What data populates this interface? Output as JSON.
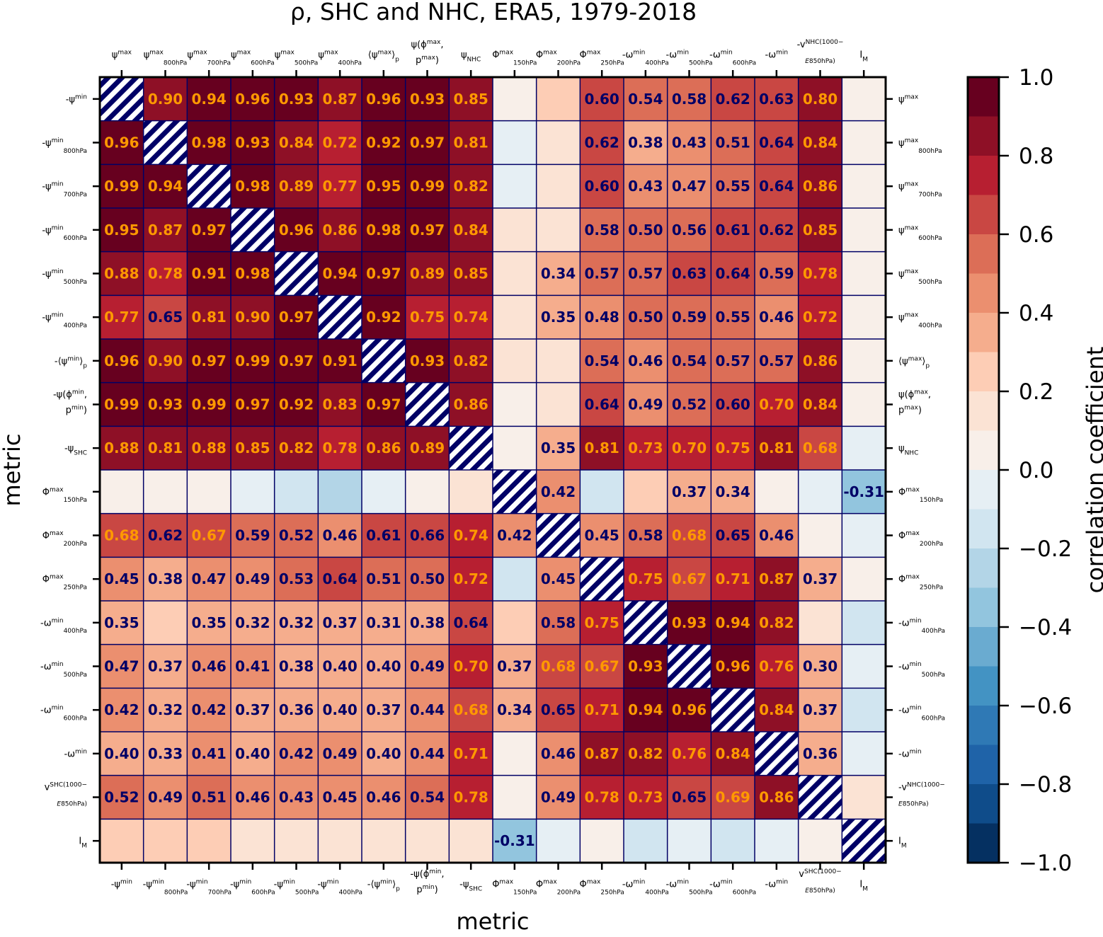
{
  "chart_data": {
    "type": "heatmap",
    "title": "ρ, SHC and NHC, ERA5, 1979-2018",
    "xlabel": "metric",
    "ylabel": "metric",
    "colorbar": {
      "label": "correlation coefficient",
      "range": [
        -1.0,
        1.0
      ],
      "ticks": [
        "1.0",
        "0.8",
        "0.6",
        "0.4",
        "0.2",
        "0.0",
        "−0.2",
        "−0.4",
        "−0.6",
        "−0.8",
        "−1.0"
      ],
      "levels": 20,
      "colormap": "RdBu_r"
    },
    "label_colors": {
      "strong": "#ff9900",
      "weak": "#000066"
    },
    "hatch_color": "#000066",
    "row_labels": [
      "-ψmin",
      "-ψmin800hPa",
      "-ψmin700hPa",
      "-ψmin600hPa",
      "-ψmin500hPa",
      "-ψmin400hPa",
      "-⟨ψmin⟩p",
      "-ψ(ϕmin, pmin)",
      "-ψSHC",
      "Φmax150hPa",
      "Φmax200hPa",
      "Φmax250hPa",
      "-ωmin400hPa",
      "-ωmin500hPa",
      "-ωmin600hPa",
      "-ωmin",
      "vSHC(1000−850hPa)E",
      "IM"
    ],
    "col_labels": [
      "ψmax",
      "ψmax800hPa",
      "ψmax700hPa",
      "ψmax600hPa",
      "ψmax500hPa",
      "ψmax400hPa",
      "⟨ψmax⟩p",
      "ψ(ϕmax, pmax)",
      "ψNHC",
      "Φmax150hPa",
      "Φmax200hPa",
      "Φmax250hPa",
      "-ωmin400hPa",
      "-ωmin500hPa",
      "-ωmin600hPa",
      "-ωmin",
      "-vNHC(1000−850hPa)E",
      "IM"
    ],
    "bottom_labels": [
      "-ψmin",
      "-ψmin800hPa",
      "-ψmin700hPa",
      "-ψmin600hPa",
      "-ψmin500hPa",
      "-ψmin400hPa",
      "-⟨ψmin⟩p",
      "-ψ(ϕmin, pmin)",
      "-ψSHC",
      "Φmax150hPa",
      "Φmax200hPa",
      "Φmax250hPa",
      "-ωmin400hPa",
      "-ωmin500hPa",
      "-ωmin600hPa",
      "-ωmin",
      "vSHC(1000−850hPa)E",
      "IM"
    ],
    "right_labels": [
      "ψmax",
      "ψmax800hPa",
      "ψmax700hPa",
      "ψmax600hPa",
      "ψmax500hPa",
      "ψmax400hPa",
      "⟨ψmax⟩p",
      "ψ(ϕmax, pmax)",
      "ψNHC",
      "Φmax150hPa",
      "Φmax200hPa",
      "Φmax250hPa",
      "-ωmin400hPa",
      "-ωmin500hPa",
      "-ωmin600hPa",
      "-ωmin",
      "-vNHC(1000−850hPa)E",
      "IM"
    ],
    "values": [
      [
        null,
        0.9,
        0.94,
        0.96,
        0.93,
        0.87,
        0.96,
        0.93,
        0.85,
        0.03,
        0.25,
        0.6,
        0.54,
        0.58,
        0.62,
        0.63,
        0.8,
        0.03
      ],
      [
        0.96,
        null,
        0.98,
        0.93,
        0.84,
        0.72,
        0.92,
        0.97,
        0.81,
        -0.03,
        0.2,
        0.62,
        0.38,
        0.43,
        0.51,
        0.64,
        0.84,
        0.03
      ],
      [
        0.99,
        0.94,
        null,
        0.98,
        0.89,
        0.77,
        0.95,
        0.99,
        0.82,
        -0.03,
        0.2,
        0.6,
        0.43,
        0.47,
        0.55,
        0.64,
        0.86,
        0.03
      ],
      [
        0.95,
        0.87,
        0.97,
        null,
        0.96,
        0.86,
        0.98,
        0.97,
        0.84,
        0.12,
        0.2,
        0.58,
        0.5,
        0.56,
        0.61,
        0.62,
        0.85,
        0.03
      ],
      [
        0.88,
        0.78,
        0.91,
        0.98,
        null,
        0.94,
        0.97,
        0.89,
        0.85,
        0.12,
        0.34,
        0.57,
        0.57,
        0.63,
        0.64,
        0.59,
        0.78,
        0.03
      ],
      [
        0.77,
        0.65,
        0.81,
        0.9,
        0.97,
        null,
        0.92,
        0.75,
        0.74,
        0.12,
        0.35,
        0.48,
        0.5,
        0.59,
        0.55,
        0.46,
        0.72,
        0.03
      ],
      [
        0.96,
        0.9,
        0.97,
        0.99,
        0.97,
        0.91,
        null,
        0.93,
        0.82,
        0.12,
        0.2,
        0.54,
        0.46,
        0.54,
        0.57,
        0.57,
        0.86,
        0.03
      ],
      [
        0.99,
        0.93,
        0.99,
        0.97,
        0.92,
        0.83,
        0.97,
        null,
        0.86,
        0.03,
        0.2,
        0.64,
        0.49,
        0.52,
        0.6,
        0.7,
        0.84,
        0.03
      ],
      [
        0.88,
        0.81,
        0.88,
        0.85,
        0.82,
        0.78,
        0.86,
        0.89,
        null,
        0.03,
        0.35,
        0.81,
        0.73,
        0.7,
        0.75,
        0.81,
        0.68,
        -0.03
      ],
      [
        0.03,
        0.03,
        0.03,
        -0.03,
        -0.12,
        -0.25,
        -0.03,
        0.03,
        0.12,
        null,
        0.42,
        -0.12,
        0.25,
        0.37,
        0.34,
        0.03,
        -0.03,
        -0.31
      ],
      [
        0.68,
        0.62,
        0.67,
        0.59,
        0.52,
        0.46,
        0.61,
        0.66,
        0.74,
        0.42,
        null,
        0.45,
        0.58,
        0.68,
        0.65,
        0.46,
        0.03,
        -0.03
      ],
      [
        0.45,
        0.38,
        0.47,
        0.49,
        0.53,
        0.64,
        0.51,
        0.5,
        0.72,
        -0.12,
        0.45,
        null,
        0.75,
        0.67,
        0.71,
        0.87,
        0.37,
        0.03
      ],
      [
        0.35,
        0.25,
        0.35,
        0.32,
        0.32,
        0.37,
        0.31,
        0.38,
        0.64,
        0.25,
        0.58,
        0.75,
        null,
        0.93,
        0.94,
        0.82,
        0.12,
        -0.12
      ],
      [
        0.47,
        0.37,
        0.46,
        0.41,
        0.38,
        0.4,
        0.4,
        0.49,
        0.7,
        0.37,
        0.68,
        0.67,
        0.93,
        null,
        0.96,
        0.76,
        0.3,
        -0.03
      ],
      [
        0.42,
        0.32,
        0.42,
        0.37,
        0.36,
        0.4,
        0.37,
        0.44,
        0.68,
        0.34,
        0.65,
        0.71,
        0.94,
        0.96,
        null,
        0.84,
        0.37,
        -0.12
      ],
      [
        0.4,
        0.33,
        0.41,
        0.4,
        0.42,
        0.49,
        0.4,
        0.44,
        0.71,
        0.03,
        0.46,
        0.87,
        0.82,
        0.76,
        0.84,
        null,
        0.36,
        -0.03
      ],
      [
        0.52,
        0.49,
        0.51,
        0.46,
        0.43,
        0.45,
        0.46,
        0.54,
        0.78,
        0.03,
        0.49,
        0.78,
        0.73,
        0.65,
        0.69,
        0.86,
        null,
        0.2
      ],
      [
        0.25,
        0.25,
        0.25,
        0.12,
        0.12,
        0.12,
        0.12,
        0.12,
        0.12,
        -0.31,
        -0.03,
        0.03,
        -0.12,
        -0.03,
        -0.12,
        -0.03,
        0.03,
        null
      ]
    ]
  }
}
